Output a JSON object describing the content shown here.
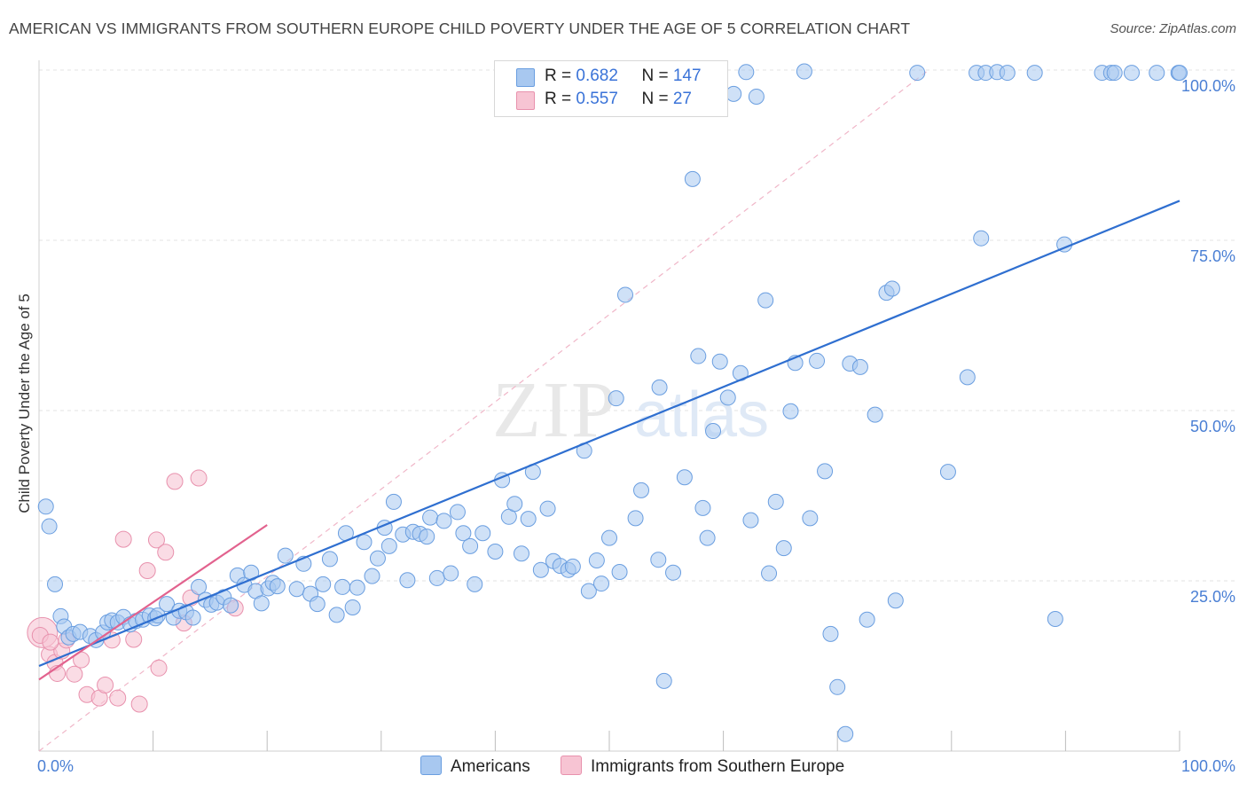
{
  "header": {
    "title": "AMERICAN VS IMMIGRANTS FROM SOUTHERN EUROPE CHILD POVERTY UNDER THE AGE OF 5 CORRELATION CHART",
    "source": "Source: ZipAtlas.com"
  },
  "watermark": {
    "zip": "ZIP",
    "atlas": "atlas"
  },
  "legend": {
    "americans": {
      "r_label": "R = ",
      "r_value": "0.682",
      "n_label": "N = ",
      "n_value": "147"
    },
    "immigrants": {
      "r_label": "R = ",
      "r_value": "0.557",
      "n_label": "N = ",
      "n_value": "27"
    }
  },
  "bottom_legend": {
    "americans": "Americans",
    "immigrants": "Immigrants from Southern Europe"
  },
  "colors": {
    "americans_fill": "#a8c8f0",
    "americans_stroke": "#6a9ee0",
    "americans_line": "#2f6fd0",
    "immigrants_fill": "#f7c4d3",
    "immigrants_stroke": "#e891ad",
    "immigrants_line": "#e2628e",
    "grid": "#e3e3e3",
    "axis_tick_text": "#4a7fd4"
  },
  "chart_data": {
    "type": "scatter",
    "title": "AMERICAN VS IMMIGRANTS FROM SOUTHERN EUROPE CHILD POVERTY UNDER THE AGE OF 5 CORRELATION CHART",
    "xlabel": "",
    "ylabel": "Child Poverty Under the Age of 5",
    "xlim": [
      0,
      100
    ],
    "ylim": [
      0,
      100
    ],
    "x_tick_labels": [
      "0.0%",
      "100.0%"
    ],
    "y_ticks": [
      25,
      50,
      75,
      100
    ],
    "y_tick_labels": [
      "25.0%",
      "50.0%",
      "75.0%",
      "100.0%"
    ],
    "grid": true,
    "legend_position": "top-center",
    "series": [
      {
        "name": "Americans",
        "r": 0.682,
        "n": 147,
        "trend": {
          "x": [
            0,
            100
          ],
          "y": [
            12.5,
            80.8
          ]
        },
        "points": [
          [
            0.6,
            35.9
          ],
          [
            0.9,
            33
          ],
          [
            1.4,
            24.5
          ],
          [
            1.9,
            19.8
          ],
          [
            2.2,
            18.3
          ],
          [
            2.6,
            16.7
          ],
          [
            3.0,
            17.2
          ],
          [
            3.6,
            17.5
          ],
          [
            4.5,
            16.9
          ],
          [
            5.0,
            16.3
          ],
          [
            5.6,
            17.4
          ],
          [
            6.0,
            18.9
          ],
          [
            6.4,
            19.2
          ],
          [
            6.9,
            18.9
          ],
          [
            7.4,
            19.7
          ],
          [
            8.0,
            18.6
          ],
          [
            8.5,
            19.1
          ],
          [
            9.1,
            19.3
          ],
          [
            9.7,
            19.9
          ],
          [
            10.2,
            19.5
          ],
          [
            10.4,
            19.9
          ],
          [
            11.2,
            21.6
          ],
          [
            11.8,
            19.6
          ],
          [
            12.3,
            20.6
          ],
          [
            12.9,
            20.4
          ],
          [
            13.5,
            19.6
          ],
          [
            14.0,
            24.1
          ],
          [
            14.6,
            22.2
          ],
          [
            15.1,
            21.5
          ],
          [
            15.6,
            21.8
          ],
          [
            16.2,
            22.6
          ],
          [
            16.8,
            21.4
          ],
          [
            17.4,
            25.8
          ],
          [
            18.0,
            24.4
          ],
          [
            18.6,
            26.2
          ],
          [
            19.0,
            23.5
          ],
          [
            19.5,
            21.7
          ],
          [
            20.1,
            23.9
          ],
          [
            20.5,
            24.7
          ],
          [
            20.9,
            24.2
          ],
          [
            21.6,
            28.7
          ],
          [
            22.6,
            23.8
          ],
          [
            23.2,
            27.5
          ],
          [
            23.8,
            23.1
          ],
          [
            24.4,
            21.6
          ],
          [
            24.9,
            24.5
          ],
          [
            25.5,
            28.2
          ],
          [
            26.1,
            20.0
          ],
          [
            26.6,
            24.1
          ],
          [
            26.9,
            32.0
          ],
          [
            27.5,
            21.1
          ],
          [
            27.9,
            24.0
          ],
          [
            28.5,
            30.7
          ],
          [
            29.2,
            25.7
          ],
          [
            29.7,
            28.3
          ],
          [
            30.3,
            32.8
          ],
          [
            30.7,
            30.1
          ],
          [
            31.1,
            36.6
          ],
          [
            31.9,
            31.8
          ],
          [
            32.3,
            25.1
          ],
          [
            32.8,
            32.2
          ],
          [
            33.4,
            31.9
          ],
          [
            34.0,
            31.5
          ],
          [
            34.3,
            34.3
          ],
          [
            34.9,
            25.4
          ],
          [
            35.5,
            33.8
          ],
          [
            36.1,
            26.1
          ],
          [
            36.7,
            35.1
          ],
          [
            37.2,
            32.0
          ],
          [
            37.8,
            30.1
          ],
          [
            38.2,
            24.5
          ],
          [
            38.9,
            32.0
          ],
          [
            40.0,
            29.3
          ],
          [
            40.6,
            39.8
          ],
          [
            41.2,
            34.4
          ],
          [
            41.7,
            36.3
          ],
          [
            42.3,
            29.0
          ],
          [
            42.9,
            34.1
          ],
          [
            43.3,
            41.0
          ],
          [
            44.0,
            26.6
          ],
          [
            44.6,
            35.6
          ],
          [
            45.1,
            27.9
          ],
          [
            45.7,
            27.2
          ],
          [
            46.4,
            26.6
          ],
          [
            46.8,
            27.1
          ],
          [
            47.8,
            44.1
          ],
          [
            48.2,
            23.5
          ],
          [
            48.9,
            28.0
          ],
          [
            49.3,
            24.6
          ],
          [
            50.0,
            31.3
          ],
          [
            50.6,
            51.8
          ],
          [
            50.9,
            26.3
          ],
          [
            51.4,
            67.0
          ],
          [
            52.3,
            34.2
          ],
          [
            52.8,
            38.3
          ],
          [
            53.5,
            95.2
          ],
          [
            54.3,
            28.1
          ],
          [
            54.4,
            53.4
          ],
          [
            54.8,
            10.3
          ],
          [
            55.6,
            26.2
          ],
          [
            56.6,
            40.2
          ],
          [
            57.3,
            84.0
          ],
          [
            57.8,
            58.0
          ],
          [
            58.2,
            35.7
          ],
          [
            58.6,
            31.3
          ],
          [
            59.1,
            47.0
          ],
          [
            59.7,
            57.2
          ],
          [
            60.4,
            51.9
          ],
          [
            60.9,
            96.5
          ],
          [
            61.5,
            55.5
          ],
          [
            62.0,
            99.7
          ],
          [
            62.4,
            33.9
          ],
          [
            62.9,
            96.1
          ],
          [
            63.7,
            66.2
          ],
          [
            64.0,
            26.1
          ],
          [
            64.6,
            36.6
          ],
          [
            65.3,
            29.8
          ],
          [
            65.9,
            49.9
          ],
          [
            66.3,
            57.0
          ],
          [
            67.1,
            99.8
          ],
          [
            67.6,
            34.2
          ],
          [
            68.2,
            57.3
          ],
          [
            68.9,
            41.1
          ],
          [
            69.4,
            17.2
          ],
          [
            70.0,
            9.4
          ],
          [
            70.7,
            2.5
          ],
          [
            71.1,
            56.9
          ],
          [
            72.0,
            56.4
          ],
          [
            72.6,
            19.3
          ],
          [
            73.3,
            49.4
          ],
          [
            74.3,
            67.3
          ],
          [
            74.8,
            67.9
          ],
          [
            75.1,
            22.1
          ],
          [
            77.0,
            99.6
          ],
          [
            79.7,
            41.0
          ],
          [
            81.4,
            54.9
          ],
          [
            82.2,
            99.6
          ],
          [
            82.6,
            75.3
          ],
          [
            83.0,
            99.6
          ],
          [
            84.0,
            99.7
          ],
          [
            84.9,
            99.6
          ],
          [
            87.3,
            99.6
          ],
          [
            89.1,
            19.4
          ],
          [
            89.9,
            74.4
          ],
          [
            93.2,
            99.6
          ],
          [
            94.0,
            99.6
          ],
          [
            94.3,
            99.6
          ],
          [
            95.8,
            99.6
          ],
          [
            98.0,
            99.6
          ],
          [
            99.9,
            99.6
          ],
          [
            100.0,
            99.6
          ]
        ]
      },
      {
        "name": "Immigrants from Southern Europe",
        "r": 0.557,
        "n": 27,
        "trend": {
          "x": [
            0,
            20
          ],
          "y": [
            10.5,
            33.2
          ]
        },
        "points": [
          [
            0.3,
            17.4
          ],
          [
            0.9,
            14.2
          ],
          [
            1.4,
            13.0
          ],
          [
            1.6,
            11.4
          ],
          [
            2.0,
            14.7
          ],
          [
            2.4,
            16.3
          ],
          [
            3.1,
            11.3
          ],
          [
            3.7,
            13.4
          ],
          [
            4.2,
            8.3
          ],
          [
            5.3,
            7.8
          ],
          [
            5.8,
            9.7
          ],
          [
            6.4,
            16.3
          ],
          [
            6.9,
            7.8
          ],
          [
            7.4,
            31.1
          ],
          [
            8.3,
            16.4
          ],
          [
            8.8,
            6.9
          ],
          [
            9.5,
            26.5
          ],
          [
            10.3,
            31.0
          ],
          [
            10.5,
            12.2
          ],
          [
            11.1,
            29.2
          ],
          [
            11.9,
            39.6
          ],
          [
            12.7,
            18.8
          ],
          [
            13.3,
            22.5
          ],
          [
            14.0,
            40.1
          ],
          [
            17.2,
            21.0
          ],
          [
            0.1,
            17.0
          ],
          [
            1.0,
            16.0
          ]
        ]
      }
    ],
    "reference_line": {
      "style": "dashed",
      "x": [
        0,
        78
      ],
      "y": [
        0,
        100
      ]
    }
  }
}
